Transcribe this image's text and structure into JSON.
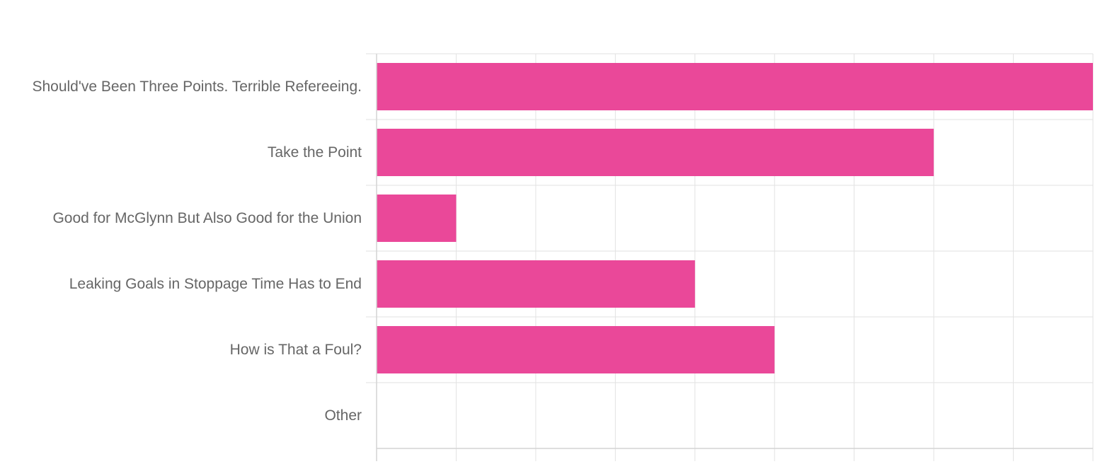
{
  "chart_data": {
    "type": "bar",
    "orientation": "horizontal",
    "categories": [
      "Should've Been Three Points. Terrible Refereeing.",
      "Take the Point",
      "Good for McGlynn But Also Good for the Union",
      "Leaking Goals in Stoppage Time Has to End",
      "How is That a Foul?",
      "Other"
    ],
    "values": [
      9,
      7,
      1,
      4,
      5,
      0
    ],
    "xlim": [
      0,
      9
    ],
    "x_ticks": [
      0,
      1,
      2,
      3,
      4,
      5,
      6,
      7,
      8,
      9
    ],
    "title": "",
    "xlabel": "",
    "ylabel": "",
    "grid": true,
    "bar_color": "#ea4899",
    "label_color": "#666666",
    "grid_color": "#e2e2e2"
  }
}
